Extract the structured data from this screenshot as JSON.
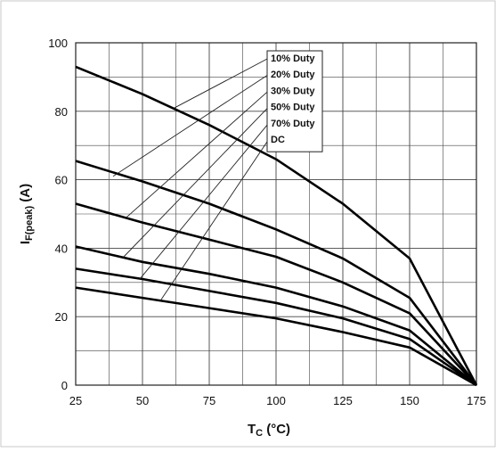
{
  "chart_data": {
    "type": "line",
    "xlabel": "T",
    "xlabel_sub": "C",
    "xlabel_unit": " (°C)",
    "ylabel": "I",
    "ylabel_sub": "F(peak)",
    "ylabel_unit": " (A)",
    "xlim": [
      25,
      175
    ],
    "ylim": [
      0,
      100
    ],
    "x_ticks": [
      25,
      50,
      75,
      100,
      125,
      150,
      175
    ],
    "y_ticks": [
      0,
      20,
      40,
      60,
      80,
      100
    ],
    "grid": true,
    "legend_placement": "top-center",
    "series": [
      {
        "name": "10% Duty",
        "x": [
          25,
          50,
          75,
          100,
          125,
          150,
          175
        ],
        "values": [
          93,
          85,
          76,
          66,
          53,
          37,
          0
        ],
        "leader_to": [
          62,
          81
        ]
      },
      {
        "name": "20% Duty",
        "x": [
          25,
          50,
          75,
          100,
          125,
          150,
          175
        ],
        "values": [
          65.5,
          59.5,
          53,
          45.5,
          37,
          25.5,
          0
        ],
        "leader_to": [
          39,
          61
        ]
      },
      {
        "name": "30% Duty",
        "x": [
          25,
          50,
          75,
          100,
          125,
          150,
          175
        ],
        "values": [
          53,
          47.5,
          42.5,
          37.5,
          30,
          21,
          0
        ],
        "leader_to": [
          44,
          49
        ]
      },
      {
        "name": "50% Duty",
        "x": [
          25,
          50,
          75,
          100,
          125,
          150,
          175
        ],
        "values": [
          40.5,
          36,
          32.5,
          28.5,
          23,
          16,
          0
        ],
        "leader_to": [
          43,
          37.5
        ]
      },
      {
        "name": "70% Duty",
        "x": [
          25,
          50,
          75,
          100,
          125,
          150,
          175
        ],
        "values": [
          34,
          31,
          27.5,
          24,
          19.5,
          13.5,
          0
        ],
        "leader_to": [
          49,
          31
        ]
      },
      {
        "name": "DC",
        "x": [
          25,
          50,
          75,
          100,
          125,
          150,
          175
        ],
        "values": [
          28.5,
          25.5,
          22.5,
          19.5,
          15.5,
          11,
          0
        ],
        "leader_to": [
          57,
          25
        ]
      }
    ]
  }
}
